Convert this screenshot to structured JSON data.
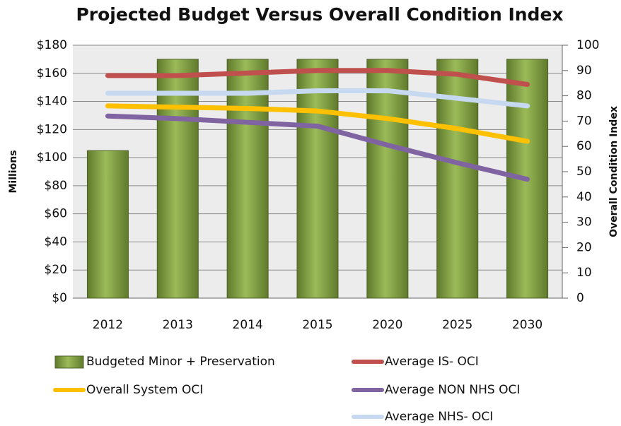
{
  "chart_data": {
    "type": "bar",
    "title": "Projected Budget Versus Overall Condition Index",
    "ylabel": "Millions",
    "y2label": "Overall Condition Index",
    "categories": [
      "2012",
      "2013",
      "2014",
      "2015",
      "2020",
      "2025",
      "2030"
    ],
    "ylim": [
      0,
      180
    ],
    "yticks": [
      {
        "value": 0,
        "label": "$0"
      },
      {
        "value": 20,
        "label": "$20"
      },
      {
        "value": 40,
        "label": "$40"
      },
      {
        "value": 60,
        "label": "$60"
      },
      {
        "value": 80,
        "label": "$80"
      },
      {
        "value": 100,
        "label": "$100"
      },
      {
        "value": 120,
        "label": "$120"
      },
      {
        "value": 140,
        "label": "$140"
      },
      {
        "value": 160,
        "label": "$160"
      },
      {
        "value": 180,
        "label": "$180"
      }
    ],
    "y2lim": [
      0,
      100
    ],
    "y2ticks": [
      0,
      10,
      20,
      30,
      40,
      50,
      60,
      70,
      80,
      90,
      100
    ],
    "grid": true,
    "series": [
      {
        "name": "Budgeted Minor + Preservation",
        "type": "bar",
        "color": "#77933c",
        "values": [
          105,
          170,
          170,
          170,
          170,
          170,
          170
        ]
      },
      {
        "name": "Average IS- OCI",
        "type": "line",
        "axis": "y2",
        "color": "#c0504d",
        "values": [
          88,
          88,
          89,
          90,
          90,
          88.5,
          84.5
        ]
      },
      {
        "name": "Overall System OCI",
        "type": "line",
        "axis": "y2",
        "color": "#ffc000",
        "values": [
          76,
          75.5,
          75,
          74,
          71,
          67,
          62
        ]
      },
      {
        "name": "Average NON NHS OCI",
        "type": "line",
        "axis": "y2",
        "color": "#8064a2",
        "values": [
          72,
          71,
          69.5,
          68,
          60.5,
          53.5,
          47
        ]
      },
      {
        "name": "Average NHS- OCI",
        "type": "line",
        "axis": "y2",
        "color": "#c6d9f1",
        "values": [
          81,
          81,
          81,
          82,
          82,
          79,
          76
        ]
      }
    ]
  }
}
